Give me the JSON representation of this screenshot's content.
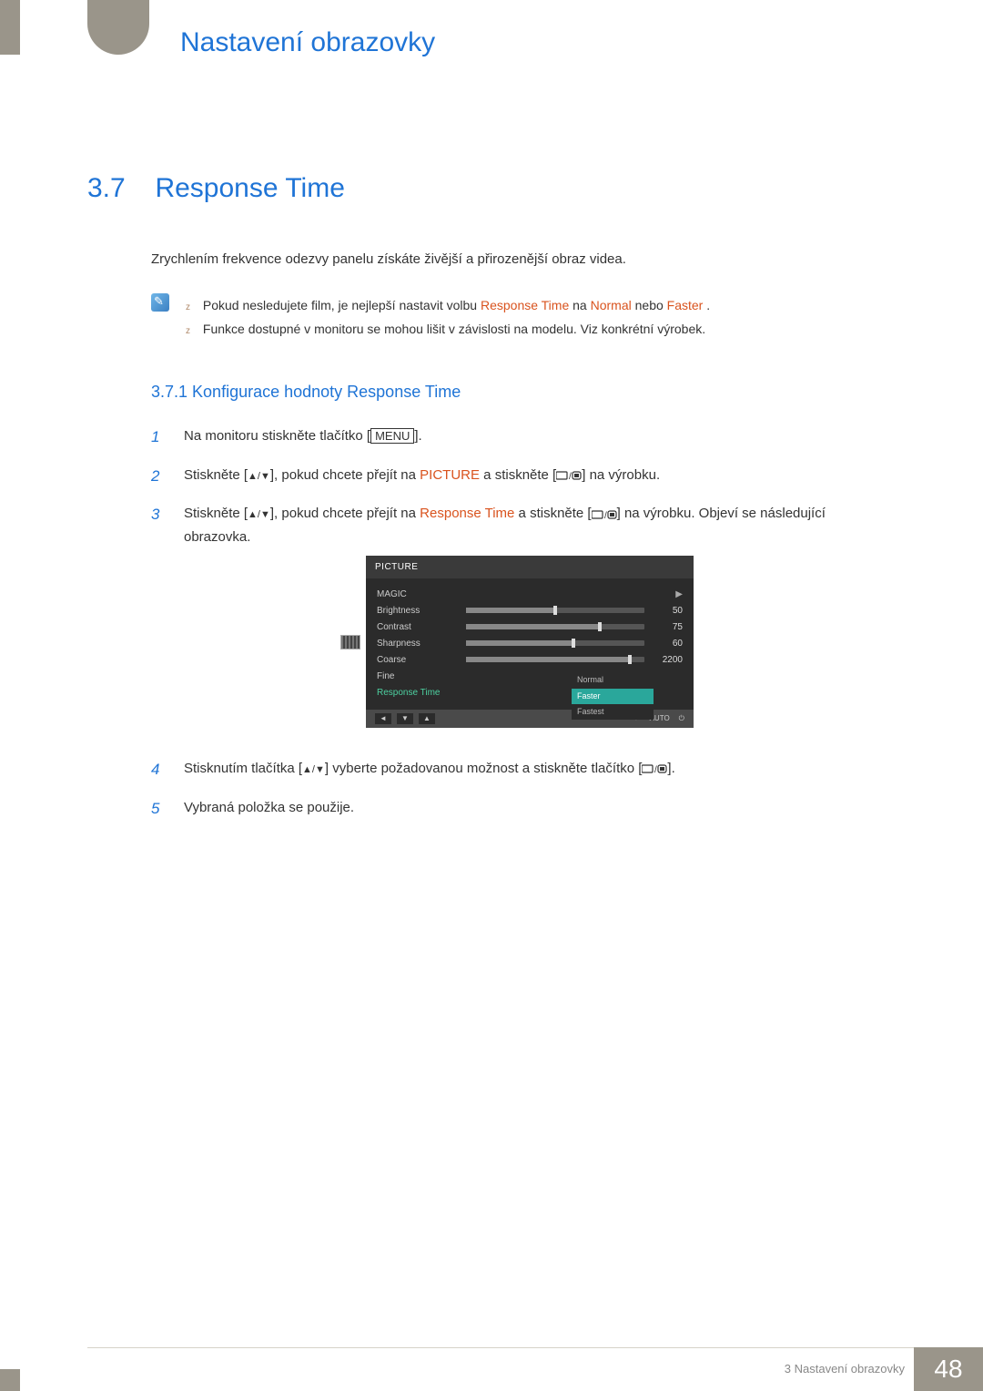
{
  "chapter_title": "Nastavení obrazovky",
  "section": {
    "num": "3.7",
    "title": "Response Time"
  },
  "intro": "Zrychlením frekvence odezvy panelu získáte živější a přirozenější obraz videa.",
  "notes": [
    {
      "pre": "Pokud nesledujete film, je nejlepší nastavit volbu",
      "hl1": "Response Time",
      "mid1": " na ",
      "hl2": "Normal",
      "mid2": " nebo ",
      "hl3": "Faster",
      "post": "."
    },
    {
      "plain": "Funkce dostupné v monitoru se mohou lišit v závislosti na modelu. Viz konkrétní výrobek."
    }
  ],
  "subsection": "3.7.1  Konfigurace hodnoty Response Time",
  "steps": {
    "s1": {
      "num": "1",
      "pre": "Na monitoru stiskněte tlačítko [",
      "boxed": "MENU",
      "post": "]."
    },
    "s2": {
      "num": "2",
      "pre": "Stiskněte [",
      "mid1": "], pokud chcete přejít na ",
      "hl": "PICTURE",
      "mid2": " a stiskněte [",
      "post": "] na výrobku."
    },
    "s3": {
      "num": "3",
      "pre": "Stiskněte [",
      "mid1": "], pokud chcete přejít na ",
      "hl": "Response Time",
      "mid2": " a stiskněte [",
      "post": "] na výrobku. Objeví se následující obrazovka."
    },
    "s4": {
      "num": "4",
      "pre": "Stisknutím tlačítka [",
      "mid": "] vyberte požadovanou možnost a stiskněte tlačítko [",
      "post": "]."
    },
    "s5": {
      "num": "5",
      "text": "Vybraná položka se použije."
    }
  },
  "osd": {
    "title": "PICTURE",
    "rows": [
      {
        "label": "MAGIC",
        "type": "arrow"
      },
      {
        "label": "Brightness",
        "type": "slider",
        "value": 50,
        "max": 100
      },
      {
        "label": "Contrast",
        "type": "slider",
        "value": 75,
        "max": 100
      },
      {
        "label": "Sharpness",
        "type": "slider",
        "value": 60,
        "max": 100
      },
      {
        "label": "Coarse",
        "type": "slider",
        "value": 2200,
        "max": 2400
      },
      {
        "label": "Fine",
        "type": "blank"
      },
      {
        "label": "Response Time",
        "type": "active"
      }
    ],
    "dropdown": {
      "items": [
        "Normal",
        "Faster",
        "Fastest"
      ],
      "selected": 1
    },
    "auto_label": "AUTO",
    "colors": {
      "bg": "#2b2b2b",
      "title_bg": "#3a3a3a",
      "footer_bg": "#4a4a4a",
      "active_green": "#4dd0a0",
      "sel_teal": "#2aa79b",
      "slider_track": "#555555",
      "slider_fill": "#888888",
      "slider_knob": "#dddddd"
    }
  },
  "footer": {
    "text": "3 Nastavení obrazovky",
    "page": "48"
  }
}
